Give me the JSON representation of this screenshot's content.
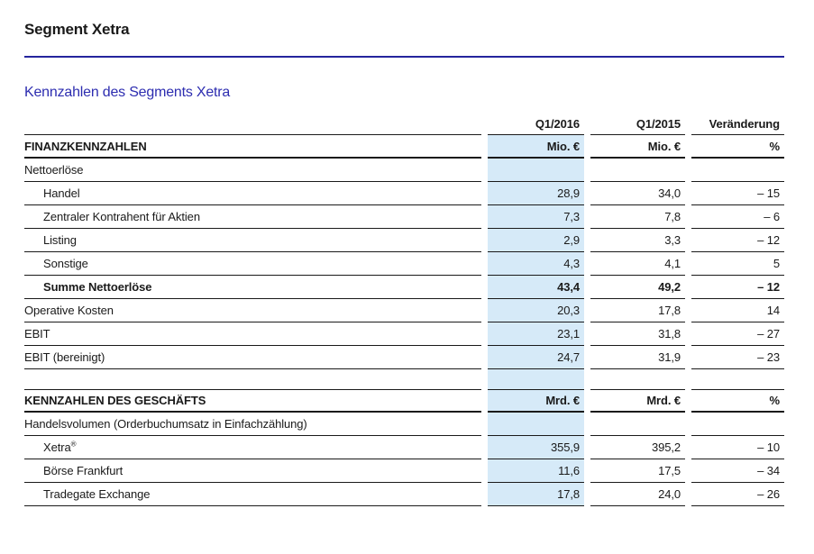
{
  "page": {
    "title": "Segment Xetra",
    "section_heading": "Kennzahlen des Segments Xetra"
  },
  "colors": {
    "text": "#1a1a1a",
    "line": "#1a1a1a",
    "accent_blue": "#2d2db0",
    "rule_navy": "#24249d",
    "highlight": "#d6eaf8",
    "page_bg": "#ffffff"
  },
  "table": {
    "column_headers": [
      "",
      "Q1/2016",
      "Q1/2015",
      "Veränderung"
    ],
    "rows": [
      {
        "label": "FINANZKENNZAHLEN",
        "q1_2016": "Mio. €",
        "q1_2015": "Mio. €",
        "change": "%",
        "style": "section"
      },
      {
        "label": "Nettoerlöse",
        "q1_2016": "",
        "q1_2015": "",
        "change": "",
        "style": "plain"
      },
      {
        "label": "Handel",
        "q1_2016": "28,9",
        "q1_2015": "34,0",
        "change": "– 15",
        "style": "indent"
      },
      {
        "label": "Zentraler Kontrahent für Aktien",
        "q1_2016": "7,3",
        "q1_2015": "7,8",
        "change": "– 6",
        "style": "indent"
      },
      {
        "label": "Listing",
        "q1_2016": "2,9",
        "q1_2015": "3,3",
        "change": "– 12",
        "style": "indent"
      },
      {
        "label": "Sonstige",
        "q1_2016": "4,3",
        "q1_2015": "4,1",
        "change": "5",
        "style": "indent"
      },
      {
        "label": "Summe Nettoerlöse",
        "q1_2016": "43,4",
        "q1_2015": "49,2",
        "change": "– 12",
        "style": "indent bold"
      },
      {
        "label": "Operative Kosten",
        "q1_2016": "20,3",
        "q1_2015": "17,8",
        "change": "14",
        "style": "plain"
      },
      {
        "label": "EBIT",
        "q1_2016": "23,1",
        "q1_2015": "31,8",
        "change": "– 27",
        "style": "plain"
      },
      {
        "label": "EBIT (bereinigt)",
        "q1_2016": "24,7",
        "q1_2015": "31,9",
        "change": "– 23",
        "style": "plain"
      },
      {
        "label": "",
        "q1_2016": "",
        "q1_2015": "",
        "change": "",
        "style": "spacer"
      },
      {
        "label": "KENNZAHLEN DES GESCHÄFTS",
        "q1_2016": "Mrd. €",
        "q1_2015": "Mrd. €",
        "change": "%",
        "style": "section section-top"
      },
      {
        "label": "Handelsvolumen (Orderbuchumsatz in Einfachzählung)",
        "q1_2016": "",
        "q1_2015": "",
        "change": "",
        "style": "plain"
      },
      {
        "label": "Xetra",
        "sup": "®",
        "q1_2016": "355,9",
        "q1_2015": "395,2",
        "change": "– 10",
        "style": "indent"
      },
      {
        "label": "Börse Frankfurt",
        "q1_2016": "11,6",
        "q1_2015": "17,5",
        "change": "– 34",
        "style": "indent"
      },
      {
        "label": "Tradegate Exchange",
        "q1_2016": "17,8",
        "q1_2015": "24,0",
        "change": "– 26",
        "style": "indent"
      }
    ]
  }
}
